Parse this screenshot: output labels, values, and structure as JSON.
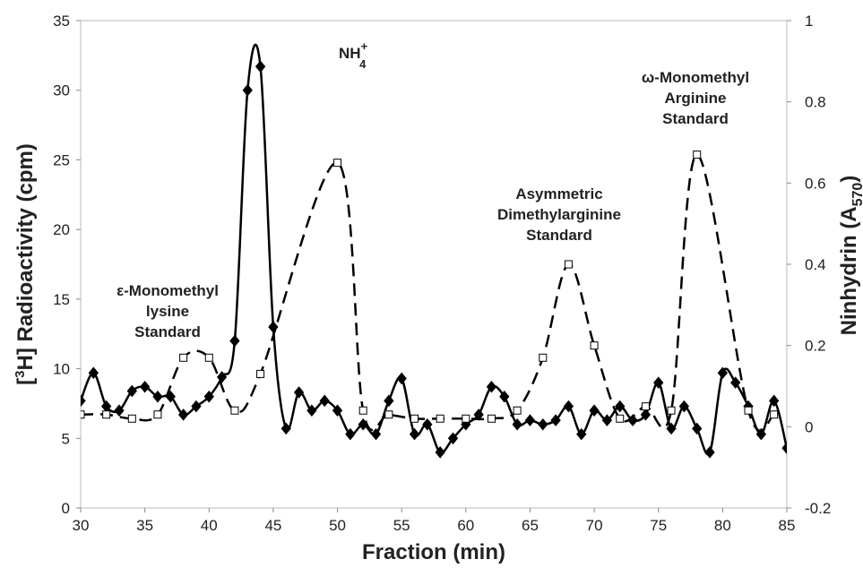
{
  "chart_data": {
    "type": "line",
    "x_label": "Fraction (min)",
    "y_label": {
      "open": "[",
      "sup": "3",
      "rest": "H] Radioactivity (cpm)"
    },
    "y2_label": {
      "main": "Ninhydrin (A",
      "sub": "570",
      "close": ")"
    },
    "xlim": [
      30,
      85
    ],
    "xticks": [
      30,
      35,
      40,
      45,
      50,
      55,
      60,
      65,
      70,
      75,
      80,
      85
    ],
    "ylim": [
      0,
      35
    ],
    "yticks": [
      0,
      5,
      10,
      15,
      20,
      25,
      30,
      35
    ],
    "y2lim": [
      -0.2,
      1
    ],
    "y2ticks": [
      -0.2,
      0,
      0.2,
      0.4,
      0.6,
      0.8,
      1
    ],
    "grid": false,
    "series": [
      {
        "name": "[3H] Radioactivity",
        "color": "#000000",
        "marker": "diamond",
        "dash": "solid",
        "x": [
          30,
          31,
          32,
          33,
          34,
          35,
          36,
          37,
          38,
          39,
          40,
          41,
          42,
          43,
          44,
          45,
          46,
          47,
          48,
          49,
          50,
          51,
          52,
          53,
          54,
          55,
          56,
          57,
          58,
          59,
          60,
          61,
          62,
          63,
          64,
          65,
          66,
          67,
          68,
          69,
          70,
          71,
          72,
          73,
          74,
          75,
          76,
          77,
          78,
          79,
          80,
          81,
          82,
          83,
          84,
          85
        ],
        "values": [
          7.7,
          9.7,
          7.3,
          7.0,
          8.4,
          8.7,
          8.0,
          8.0,
          6.7,
          7.3,
          8.0,
          9.4,
          12.0,
          30.0,
          31.7,
          13.0,
          5.7,
          8.3,
          7.0,
          7.7,
          7.0,
          5.3,
          6.0,
          5.3,
          7.7,
          9.3,
          5.3,
          6.0,
          4.0,
          5.0,
          6.0,
          6.7,
          8.7,
          8.0,
          6.0,
          6.3,
          6.0,
          6.3,
          7.3,
          5.3,
          7.0,
          6.3,
          7.3,
          6.3,
          6.7,
          9.0,
          5.7,
          7.3,
          5.7,
          4.0,
          9.7,
          9.0,
          7.3,
          5.3,
          7.7,
          4.3
        ]
      },
      {
        "name": "Ninhydrin",
        "color": "#000000",
        "marker": "square",
        "dash": "dashed",
        "axis": "y2",
        "x": [
          30,
          32,
          34,
          36,
          38,
          40,
          42,
          44,
          50,
          52,
          54,
          56,
          58,
          60,
          62,
          64,
          66,
          68,
          70,
          72,
          74,
          76,
          78,
          82,
          84
        ],
        "values": [
          0.03,
          0.03,
          0.02,
          0.03,
          0.17,
          0.17,
          0.04,
          0.13,
          0.65,
          0.04,
          0.03,
          0.02,
          0.02,
          0.02,
          0.02,
          0.04,
          0.17,
          0.4,
          0.2,
          0.02,
          0.05,
          0.04,
          0.67,
          0.04,
          0.03
        ]
      }
    ],
    "annotations": [
      {
        "lines": [
          "ε-Monomethyl",
          "lysine",
          "Standard"
        ]
      },
      {
        "text": "NH",
        "sub": "4",
        "sup": "+"
      },
      {
        "lines": [
          "Asymmetric",
          "Dimethylarginine",
          "Standard"
        ]
      },
      {
        "lines": [
          "ω-Monomethyl",
          "Arginine",
          "Standard"
        ]
      }
    ]
  }
}
